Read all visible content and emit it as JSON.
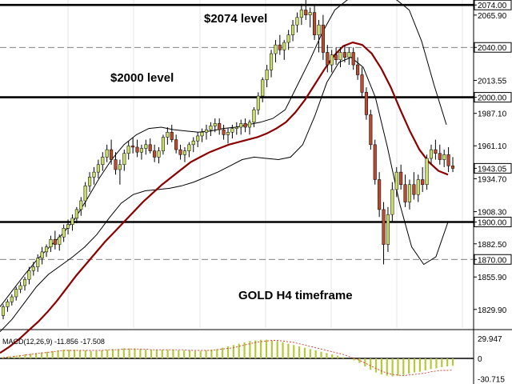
{
  "chart_data": {
    "type": "candlestick",
    "instrument_label": "GOLD H4 timeframe",
    "annotations": [
      "$2074 level",
      "$2000 level",
      "GOLD H4 timeframe"
    ],
    "y_ticks": [
      "2074.00",
      "2065.90",
      "2040.00",
      "2013.55",
      "2000.00",
      "1987.10",
      "1961.10",
      "1943.05",
      "1934.70",
      "1908.30",
      "1900.00",
      "1882.50",
      "1870.00",
      "1855.90",
      "1829.90"
    ],
    "ylim": [
      1815,
      2078
    ],
    "horizontal_levels": [
      {
        "value": 2074,
        "style": "solid"
      },
      {
        "value": 2040,
        "style": "dashed"
      },
      {
        "value": 2000,
        "style": "solid"
      },
      {
        "value": 1900,
        "style": "solid"
      },
      {
        "value": 1870,
        "style": "dashed"
      }
    ],
    "current_price": "1943.05",
    "candles": [
      [
        1825,
        1834,
        1822,
        1832
      ],
      [
        1832,
        1838,
        1828,
        1836
      ],
      [
        1836,
        1842,
        1833,
        1840
      ],
      [
        1840,
        1848,
        1837,
        1846
      ],
      [
        1846,
        1852,
        1843,
        1849
      ],
      [
        1849,
        1856,
        1845,
        1854
      ],
      [
        1854,
        1864,
        1850,
        1861
      ],
      [
        1861,
        1868,
        1857,
        1864
      ],
      [
        1864,
        1874,
        1860,
        1871
      ],
      [
        1871,
        1880,
        1866,
        1876
      ],
      [
        1876,
        1882,
        1872,
        1880
      ],
      [
        1880,
        1889,
        1876,
        1886
      ],
      [
        1886,
        1893,
        1878,
        1882
      ],
      [
        1882,
        1890,
        1877,
        1888
      ],
      [
        1888,
        1898,
        1884,
        1895
      ],
      [
        1895,
        1902,
        1890,
        1898
      ],
      [
        1898,
        1906,
        1893,
        1903
      ],
      [
        1903,
        1912,
        1899,
        1910
      ],
      [
        1910,
        1920,
        1905,
        1917
      ],
      [
        1917,
        1932,
        1912,
        1929
      ],
      [
        1929,
        1940,
        1924,
        1936
      ],
      [
        1936,
        1944,
        1930,
        1940
      ],
      [
        1940,
        1950,
        1935,
        1946
      ],
      [
        1946,
        1956,
        1941,
        1952
      ],
      [
        1952,
        1962,
        1948,
        1958
      ],
      [
        1958,
        1966,
        1946,
        1950
      ],
      [
        1950,
        1956,
        1938,
        1942
      ],
      [
        1942,
        1950,
        1930,
        1946
      ],
      [
        1946,
        1958,
        1941,
        1955
      ],
      [
        1955,
        1965,
        1950,
        1961
      ],
      [
        1961,
        1968,
        1955,
        1960
      ],
      [
        1960,
        1966,
        1952,
        1956
      ],
      [
        1956,
        1962,
        1950,
        1959
      ],
      [
        1959,
        1966,
        1954,
        1962
      ],
      [
        1962,
        1967,
        1955,
        1957
      ],
      [
        1957,
        1962,
        1948,
        1952
      ],
      [
        1952,
        1960,
        1947,
        1957
      ],
      [
        1957,
        1970,
        1954,
        1968
      ],
      [
        1968,
        1976,
        1962,
        1972
      ],
      [
        1972,
        1978,
        1964,
        1966
      ],
      [
        1966,
        1970,
        1955,
        1958
      ],
      [
        1958,
        1962,
        1950,
        1954
      ],
      [
        1954,
        1960,
        1948,
        1957
      ],
      [
        1957,
        1964,
        1952,
        1962
      ],
      [
        1962,
        1968,
        1956,
        1965
      ],
      [
        1965,
        1972,
        1960,
        1969
      ],
      [
        1969,
        1975,
        1964,
        1972
      ],
      [
        1972,
        1978,
        1966,
        1974
      ],
      [
        1974,
        1980,
        1969,
        1977
      ],
      [
        1977,
        1983,
        1972,
        1979
      ],
      [
        1979,
        1983,
        1970,
        1974
      ],
      [
        1974,
        1978,
        1966,
        1970
      ],
      [
        1970,
        1975,
        1963,
        1972
      ],
      [
        1972,
        1978,
        1967,
        1975
      ],
      [
        1975,
        1980,
        1970,
        1976
      ],
      [
        1976,
        1982,
        1970,
        1979
      ],
      [
        1979,
        1983,
        1972,
        1976
      ],
      [
        1976,
        1982,
        1970,
        1980
      ],
      [
        1980,
        1992,
        1976,
        1990
      ],
      [
        1990,
        2004,
        1986,
        2001
      ],
      [
        2001,
        2016,
        1996,
        2014
      ],
      [
        2014,
        2026,
        2008,
        2022
      ],
      [
        2022,
        2038,
        2016,
        2035
      ],
      [
        2035,
        2046,
        2028,
        2042
      ],
      [
        2042,
        2050,
        2034,
        2038
      ],
      [
        2038,
        2046,
        2030,
        2044
      ],
      [
        2044,
        2054,
        2038,
        2050
      ],
      [
        2050,
        2062,
        2045,
        2058
      ],
      [
        2058,
        2068,
        2052,
        2064
      ],
      [
        2064,
        2075,
        2058,
        2070
      ],
      [
        2070,
        2078,
        2062,
        2066
      ],
      [
        2066,
        2072,
        2056,
        2068
      ],
      [
        2068,
        2074,
        2046,
        2050
      ],
      [
        2050,
        2062,
        2036,
        2058
      ],
      [
        2058,
        2066,
        2030,
        2036
      ],
      [
        2036,
        2042,
        2020,
        2026
      ],
      [
        2026,
        2038,
        2020,
        2034
      ],
      [
        2034,
        2040,
        2026,
        2030
      ],
      [
        2030,
        2040,
        2024,
        2036
      ],
      [
        2036,
        2042,
        2028,
        2032
      ],
      [
        2032,
        2040,
        2026,
        2036
      ],
      [
        2036,
        2040,
        2022,
        2026
      ],
      [
        2026,
        2032,
        2014,
        2018
      ],
      [
        2018,
        2024,
        2000,
        2004
      ],
      [
        2004,
        2008,
        1982,
        1986
      ],
      [
        1986,
        1990,
        1958,
        1962
      ],
      [
        1962,
        1966,
        1930,
        1934
      ],
      [
        1934,
        1940,
        1904,
        1910
      ],
      [
        1910,
        1916,
        1866,
        1882
      ],
      [
        1882,
        1912,
        1876,
        1906
      ],
      [
        1906,
        1932,
        1900,
        1926
      ],
      [
        1926,
        1944,
        1920,
        1940
      ],
      [
        1940,
        1946,
        1926,
        1930
      ],
      [
        1930,
        1938,
        1912,
        1916
      ],
      [
        1916,
        1934,
        1910,
        1930
      ],
      [
        1930,
        1940,
        1918,
        1922
      ],
      [
        1922,
        1938,
        1916,
        1934
      ],
      [
        1934,
        1944,
        1924,
        1930
      ],
      [
        1930,
        1954,
        1926,
        1951
      ],
      [
        1951,
        1962,
        1946,
        1958
      ],
      [
        1958,
        1966,
        1950,
        1955
      ],
      [
        1955,
        1962,
        1946,
        1950
      ],
      [
        1950,
        1958,
        1944,
        1954
      ],
      [
        1954,
        1960,
        1940,
        1945
      ],
      [
        1945,
        1952,
        1940,
        1943
      ]
    ],
    "moving_average": [
      1795,
      1800,
      1806,
      1813,
      1820,
      1828,
      1837,
      1847,
      1857,
      1866,
      1875,
      1884,
      1892,
      1900,
      1908,
      1916,
      1923,
      1930,
      1936,
      1942,
      1948,
      1952,
      1956,
      1959,
      1962,
      1964,
      1966,
      1968,
      1971,
      1975,
      1980,
      1988,
      1998,
      2010,
      2022,
      2033,
      2041,
      2044,
      2042,
      2035,
      2023,
      2008,
      1990,
      1973,
      1958,
      1948,
      1941,
      1938
    ],
    "upper_band": [
      1832,
      1845,
      1858,
      1870,
      1880,
      1890,
      1902,
      1918,
      1935,
      1950,
      1962,
      1970,
      1975,
      1976,
      1974,
      1973,
      1972,
      1973,
      1975,
      1976,
      1978,
      1980,
      1983,
      1990,
      2010,
      2030,
      2052,
      2070,
      2078,
      2082,
      2084,
      2082,
      2078,
      2070,
      2045,
      2010,
      1978
    ],
    "lower_band": [
      1812,
      1822,
      1835,
      1848,
      1858,
      1865,
      1872,
      1880,
      1890,
      1903,
      1915,
      1922,
      1925,
      1926,
      1927,
      1929,
      1932,
      1936,
      1940,
      1945,
      1950,
      1952,
      1951,
      1950,
      1952,
      1962,
      1985,
      2012,
      2028,
      2032,
      2024,
      2000,
      1960,
      1915,
      1880,
      1866,
      1872,
      1900
    ],
    "macd": {
      "label": "MACD(12,26,9) -11.856 -17.508",
      "y_ticks": [
        "29.947",
        "0",
        "-30.715"
      ],
      "histogram": [
        2,
        3,
        4,
        5,
        6,
        7,
        8,
        9,
        10,
        11,
        12,
        13,
        13,
        13,
        12,
        12,
        11,
        11,
        12,
        13,
        14,
        14,
        15,
        15,
        15,
        14,
        13,
        13,
        13,
        13,
        13,
        13,
        12,
        12,
        12,
        11,
        11,
        12,
        13,
        14,
        16,
        18,
        20,
        22,
        24,
        26,
        27,
        28,
        28,
        27,
        26,
        24,
        22,
        20,
        18,
        16,
        14,
        12,
        10,
        8,
        6,
        4,
        2,
        0,
        -3,
        -7,
        -12,
        -17,
        -21,
        -24,
        -26,
        -27,
        -26,
        -25,
        -23,
        -21,
        -20,
        -18,
        -16,
        -15,
        -13,
        -12,
        -11
      ],
      "signal": [
        1,
        2,
        3,
        4,
        5,
        6,
        7,
        8,
        9,
        10,
        11,
        12,
        12,
        12,
        12,
        12,
        12,
        12,
        12,
        13,
        13,
        13,
        14,
        14,
        14,
        14,
        14,
        13,
        13,
        13,
        13,
        13,
        13,
        13,
        12,
        12,
        12,
        12,
        12,
        13,
        14,
        15,
        16,
        18,
        20,
        22,
        24,
        25,
        26,
        27,
        27,
        26,
        25,
        24,
        22,
        20,
        18,
        16,
        14,
        12,
        10,
        8,
        6,
        3,
        0,
        -3,
        -7,
        -11,
        -15,
        -19,
        -22,
        -24,
        -25,
        -26,
        -25,
        -24,
        -23,
        -22,
        -20,
        -19,
        -18,
        -18,
        -17.5
      ]
    }
  }
}
